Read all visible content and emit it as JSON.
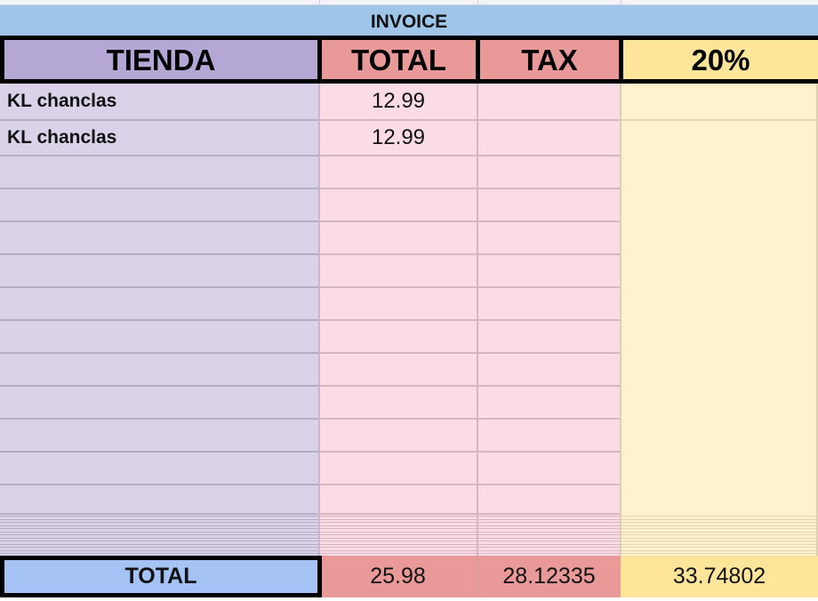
{
  "title": "INVOICE",
  "headers": {
    "store": "TIENDA",
    "total": "TOTAL",
    "tax": "TAX",
    "rate": "20%"
  },
  "rows": [
    {
      "store": "KL chanclas",
      "total": "12.99"
    },
    {
      "store": "KL chanclas",
      "total": "12.99"
    }
  ],
  "totals": {
    "label": "TOTAL",
    "total": "25.98",
    "tax": "28.12335",
    "rate": "33.74802"
  },
  "colors": {
    "title": "#9fc5e8",
    "store_header": "#b4a7d6",
    "store_body": "#d9d2e9",
    "red_header": "#ea9999",
    "red_body": "#fadbe6",
    "yellow_header": "#ffe599",
    "yellow_body": "#fff2cc",
    "total_label": "#a4c2f4"
  }
}
